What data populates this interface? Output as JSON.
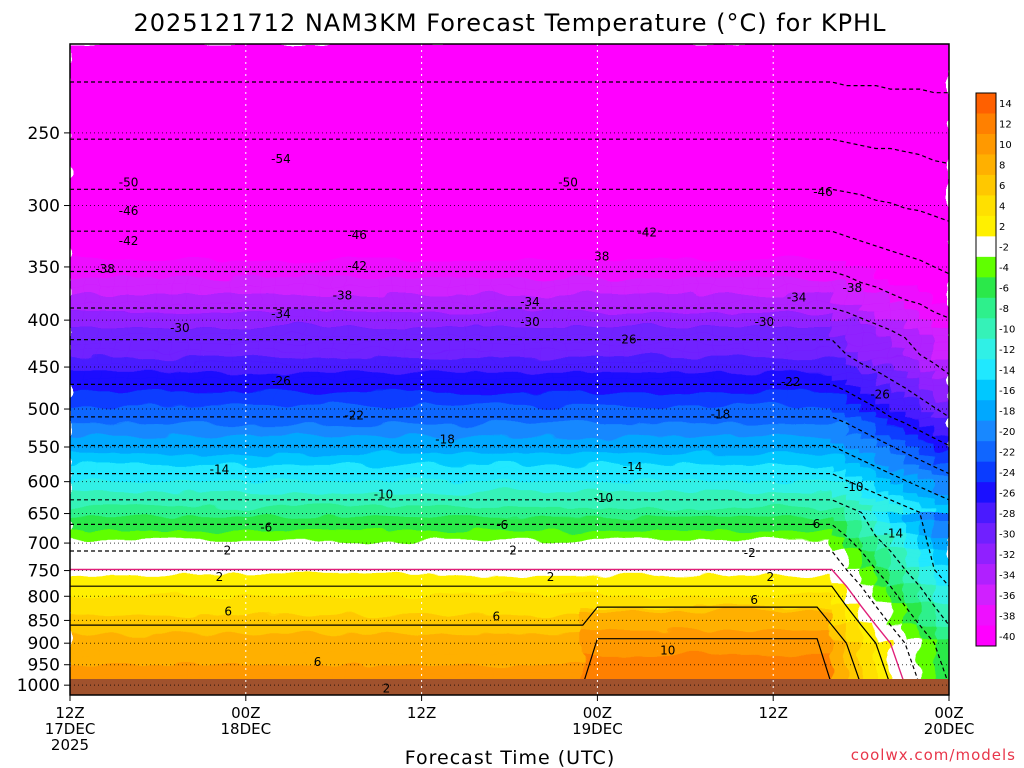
{
  "chart_data": {
    "type": "heatmap",
    "title": "2025121712 NAM3KM Forecast Temperature (°C) for KPHL",
    "xlabel": "Forecast Time (UTC)",
    "credit": "coolwx.com/models",
    "y_axis": {
      "label": "",
      "ticks": [
        250,
        300,
        350,
        400,
        450,
        500,
        550,
        600,
        650,
        700,
        750,
        800,
        850,
        900,
        950,
        1000
      ],
      "range": [
        200,
        1025
      ],
      "scale": "log-pressure"
    },
    "x_axis": {
      "range_hours": [
        0,
        60
      ],
      "ticks": [
        {
          "line1": "12Z",
          "line2": "17DEC",
          "line3": "2025"
        },
        {
          "line1": "00Z",
          "line2": "18DEC",
          "line3": ""
        },
        {
          "line1": "12Z",
          "line2": "",
          "line3": ""
        },
        {
          "line1": "00Z",
          "line2": "19DEC",
          "line3": ""
        },
        {
          "line1": "12Z",
          "line2": "",
          "line3": ""
        },
        {
          "line1": "00Z",
          "line2": "20DEC",
          "line3": ""
        }
      ]
    },
    "colorbar": {
      "labels": [
        "14",
        "12",
        "10",
        "8",
        "6",
        "4",
        "2",
        "-2",
        "-4",
        "-6",
        "-8",
        "-10",
        "-12",
        "-14",
        "-16",
        "-18",
        "-20",
        "-22",
        "-24",
        "-26",
        "-28",
        "-30",
        "-32",
        "-34",
        "-36",
        "-38",
        "-40"
      ],
      "colors": [
        "#ff6000",
        "#ff8000",
        "#ff9900",
        "#ffb000",
        "#ffc800",
        "#ffe000",
        "#fff000",
        "#ffffff",
        "#60ff00",
        "#2be84a",
        "#2ef08c",
        "#35f2b8",
        "#30f0e6",
        "#20e8ff",
        "#00c8ff",
        "#00a8ff",
        "#1888ff",
        "#1066ff",
        "#0a3cff",
        "#1a10ff",
        "#4a1aff",
        "#7020ff",
        "#9020ff",
        "#b020ff",
        "#d020ff",
        "#ee10ff",
        "#ff00ff"
      ]
    },
    "series": [
      {
        "name": "freezing level contour",
        "color": "#e0207a"
      }
    ],
    "contour_labels": [
      {
        "text": "-50",
        "t": 4,
        "p": 283
      },
      {
        "text": "-46",
        "t": 4,
        "p": 304
      },
      {
        "text": "-42",
        "t": 4,
        "p": 328
      },
      {
        "text": "-38",
        "t": 2.4,
        "p": 352
      },
      {
        "text": "-30",
        "t": 7.5,
        "p": 408
      },
      {
        "text": "-54",
        "t": 14.4,
        "p": 267
      },
      {
        "text": "-46",
        "t": 19.6,
        "p": 323
      },
      {
        "text": "-42",
        "t": 19.6,
        "p": 349
      },
      {
        "text": "-38",
        "t": 18.6,
        "p": 376
      },
      {
        "text": "-34",
        "t": 14.4,
        "p": 394
      },
      {
        "text": "-26",
        "t": 14.4,
        "p": 466
      },
      {
        "text": "-22",
        "t": 19.4,
        "p": 508
      },
      {
        "text": "-18",
        "t": 25.6,
        "p": 540
      },
      {
        "text": "-14",
        "t": 10.2,
        "p": 582
      },
      {
        "text": "-10",
        "t": 21.4,
        "p": 620
      },
      {
        "text": "-6",
        "t": 13.4,
        "p": 673
      },
      {
        "text": "-2",
        "t": 10.6,
        "p": 713
      },
      {
        "text": "2",
        "t": 10.2,
        "p": 762
      },
      {
        "text": "6",
        "t": 10.8,
        "p": 831
      },
      {
        "text": "6",
        "t": 16.9,
        "p": 944
      },
      {
        "text": "2",
        "t": 21.6,
        "p": 1008
      },
      {
        "text": "-50",
        "t": 34,
        "p": 283
      },
      {
        "text": "-42",
        "t": 39.4,
        "p": 321
      },
      {
        "text": "38",
        "t": 36.3,
        "p": 341
      },
      {
        "text": "-34",
        "t": 31.4,
        "p": 382
      },
      {
        "text": "-30",
        "t": 31.4,
        "p": 402
      },
      {
        "text": "-26",
        "t": 38,
        "p": 420
      },
      {
        "text": "-14",
        "t": 38.4,
        "p": 578
      },
      {
        "text": "-10",
        "t": 36.4,
        "p": 625
      },
      {
        "text": "-6",
        "t": 29.5,
        "p": 669
      },
      {
        "text": "-2",
        "t": 30.1,
        "p": 713
      },
      {
        "text": "2",
        "t": 32.8,
        "p": 762
      },
      {
        "text": "6",
        "t": 29.1,
        "p": 842
      },
      {
        "text": "10",
        "t": 40.8,
        "p": 917
      },
      {
        "text": "-18",
        "t": 44.4,
        "p": 507
      },
      {
        "text": "-22",
        "t": 49.2,
        "p": 467
      },
      {
        "text": "-30",
        "t": 47.4,
        "p": 402
      },
      {
        "text": "-34",
        "t": 49.6,
        "p": 378
      },
      {
        "text": "-2",
        "t": 46.4,
        "p": 718
      },
      {
        "text": "2",
        "t": 47.8,
        "p": 762
      },
      {
        "text": "-6",
        "t": 50.8,
        "p": 667
      },
      {
        "text": "6",
        "t": 46.7,
        "p": 808
      },
      {
        "text": "-46",
        "t": 51.4,
        "p": 290
      },
      {
        "text": "-38",
        "t": 53.4,
        "p": 369
      },
      {
        "text": "-26",
        "t": 55.3,
        "p": 482
      },
      {
        "text": "-10",
        "t": 53.5,
        "p": 608
      },
      {
        "text": "-14",
        "t": 56.2,
        "p": 683
      }
    ]
  }
}
